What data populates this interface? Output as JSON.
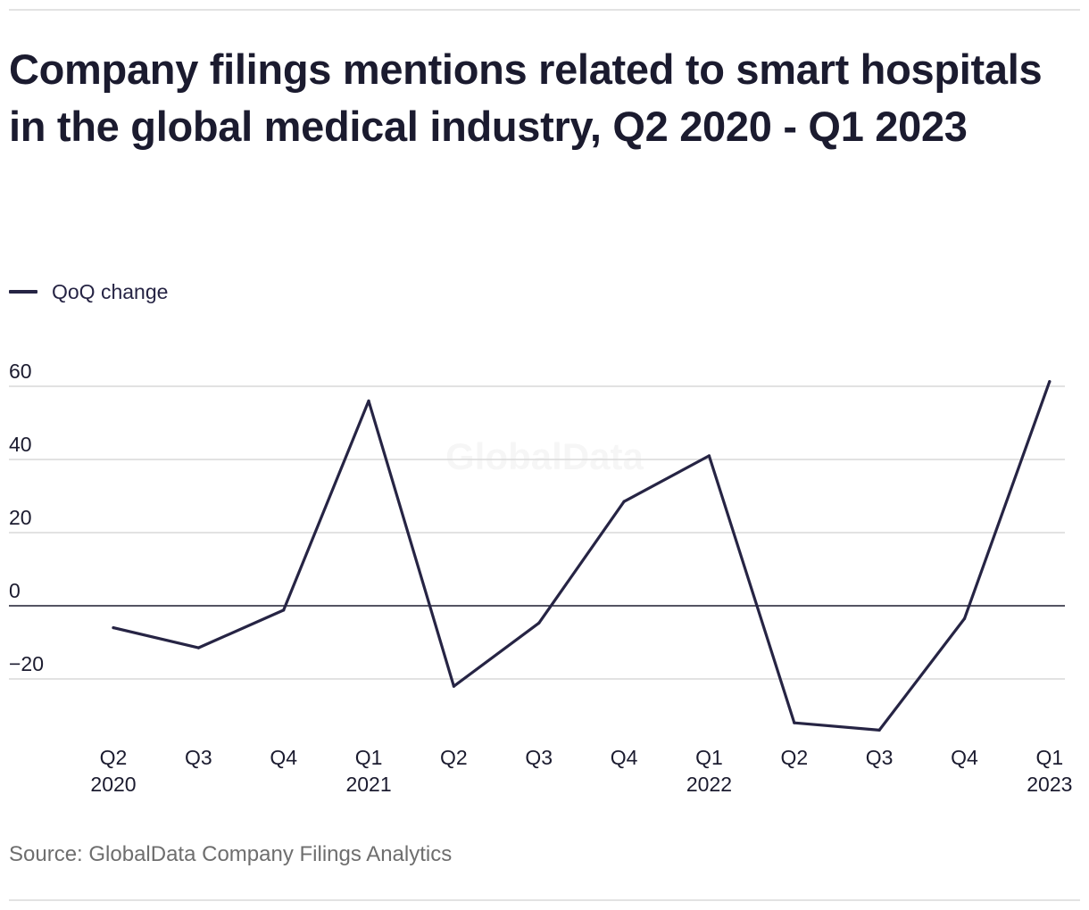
{
  "title": "Company filings mentions related to smart hospitals in the global medical industry, Q2 2020 - Q1 2023",
  "source": "Source: GlobalData Company Filings Analytics",
  "watermark": "GlobalData",
  "colors": {
    "line": "#262444",
    "grid": "#d9d9d9",
    "zero": "#1b1b2f",
    "text": "#1b1b2f"
  },
  "chart_data": {
    "type": "line",
    "title": "Company filings mentions related to smart hospitals in the global medical industry, Q2 2020 - Q1 2023",
    "xlabel": "",
    "ylabel": "",
    "ylim": [
      -35,
      65
    ],
    "yticks": [
      60,
      40,
      20,
      0,
      -20
    ],
    "ytick_labels": [
      "60",
      "40",
      "20",
      "0",
      "−20"
    ],
    "categories": [
      {
        "q": "Q2",
        "year": "2020"
      },
      {
        "q": "Q3",
        "year": ""
      },
      {
        "q": "Q4",
        "year": ""
      },
      {
        "q": "Q1",
        "year": "2021"
      },
      {
        "q": "Q2",
        "year": ""
      },
      {
        "q": "Q3",
        "year": ""
      },
      {
        "q": "Q4",
        "year": ""
      },
      {
        "q": "Q1",
        "year": "2022"
      },
      {
        "q": "Q2",
        "year": ""
      },
      {
        "q": "Q3",
        "year": ""
      },
      {
        "q": "Q4",
        "year": ""
      },
      {
        "q": "Q1",
        "year": "2023"
      }
    ],
    "series": [
      {
        "name": "QoQ change",
        "values": [
          -6,
          -11.5,
          -1.2,
          56,
          -22,
          -4.7,
          28.5,
          41,
          -32,
          -34,
          -3.5,
          61.3
        ]
      }
    ],
    "legend": "top-left",
    "grid": true
  }
}
